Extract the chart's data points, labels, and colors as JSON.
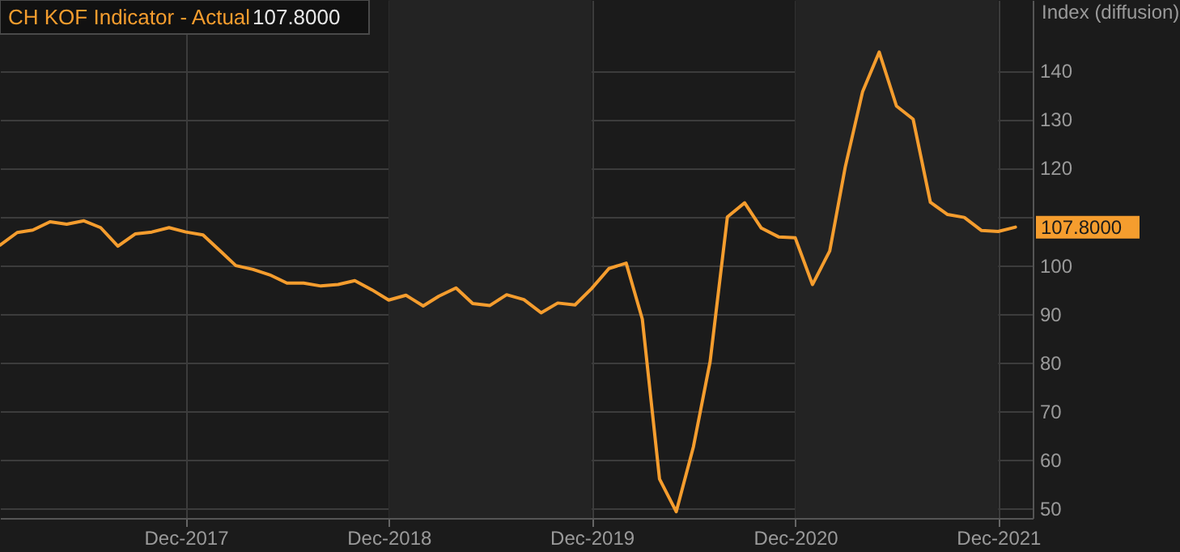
{
  "chart_data": {
    "type": "line",
    "ylabel": "Index (diffusion)",
    "x": [
      "2017-01",
      "2017-02",
      "2017-03",
      "2017-04",
      "2017-05",
      "2017-06",
      "2017-07",
      "2017-08",
      "2017-09",
      "2017-10",
      "2017-11",
      "2017-12",
      "2018-01",
      "2018-02",
      "2018-03",
      "2018-04",
      "2018-05",
      "2018-06",
      "2018-07",
      "2018-08",
      "2018-09",
      "2018-10",
      "2018-11",
      "2018-12",
      "2019-01",
      "2019-02",
      "2019-03",
      "2019-04",
      "2019-05",
      "2019-06",
      "2019-07",
      "2019-08",
      "2019-09",
      "2019-10",
      "2019-11",
      "2019-12",
      "2020-01",
      "2020-02",
      "2020-03",
      "2020-04",
      "2020-05",
      "2020-06",
      "2020-07",
      "2020-08",
      "2020-09",
      "2020-10",
      "2020-11",
      "2020-12",
      "2021-01",
      "2021-02",
      "2021-03",
      "2021-04",
      "2021-05",
      "2021-06",
      "2021-07",
      "2021-08",
      "2021-09",
      "2021-10",
      "2021-11",
      "2021-12",
      "2022-01"
    ],
    "series": [
      {
        "name": "CH KOF Indicator - Actual",
        "color": "#f59d2e",
        "values": [
          104.1,
          106.7,
          107.2,
          108.9,
          108.4,
          109.1,
          107.7,
          103.9,
          106.4,
          106.8,
          107.7,
          106.8,
          106.2,
          102.9,
          99.9,
          99.1,
          98.0,
          96.3,
          96.3,
          95.7,
          96.0,
          96.8,
          94.9,
          92.8,
          93.8,
          91.6,
          93.6,
          95.3,
          92.1,
          91.7,
          93.9,
          92.9,
          90.2,
          92.2,
          91.8,
          95.2,
          99.3,
          100.4,
          88.9,
          56.0,
          49.3,
          62.7,
          80.2,
          109.9,
          112.8,
          107.6,
          105.8,
          105.6,
          96.0,
          102.9,
          120.2,
          135.6,
          143.8,
          132.7,
          130.0,
          112.9,
          110.4,
          109.8,
          107.1,
          106.9,
          107.8
        ],
        "value_labels": [
          null,
          null,
          null,
          null,
          null,
          null,
          null,
          null,
          null,
          null,
          null,
          null,
          null,
          null,
          null,
          null,
          null,
          null,
          null,
          null,
          null,
          null,
          null,
          null,
          null,
          null,
          null,
          null,
          null,
          null,
          null,
          null,
          null,
          null,
          null,
          null,
          null,
          null,
          null,
          null,
          null,
          null,
          null,
          null,
          null,
          null,
          null,
          null,
          null,
          null,
          null,
          null,
          null,
          null,
          null,
          null,
          null,
          null,
          null,
          null,
          "107.8000"
        ]
      }
    ],
    "annotations": [
      "107.8000"
    ],
    "xlim": [
      "2017-01",
      "2022-02"
    ],
    "xticks": [
      {
        "value": "2017-12",
        "label": "Dec-2017"
      },
      {
        "value": "2018-12",
        "label": "Dec-2018"
      },
      {
        "value": "2019-12",
        "label": "Dec-2019"
      },
      {
        "value": "2020-12",
        "label": "Dec-2020"
      },
      {
        "value": "2021-12",
        "label": "Dec-2021"
      }
    ],
    "ylim": [
      48,
      154.5
    ],
    "yticks": [
      50,
      60,
      70,
      80,
      90,
      100,
      {
        "value": 110,
        "label": null
      },
      120,
      130,
      140
    ],
    "bands": [
      {
        "axis": "x",
        "from": "2018-12",
        "to": "2019-12",
        "color": "#232323"
      },
      {
        "axis": "x",
        "from": "2020-12",
        "to": "2021-12",
        "color": "#232323"
      }
    ],
    "grid": true
  }
}
